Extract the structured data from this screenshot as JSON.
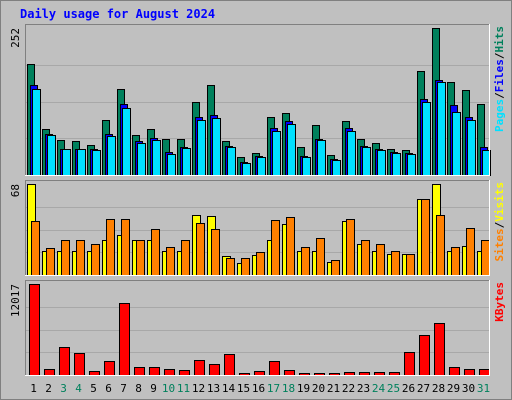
{
  "chart_data": {
    "type": "bar",
    "title": "Daily usage for August 2024",
    "days": [
      "1",
      "2",
      "3",
      "4",
      "5",
      "6",
      "7",
      "8",
      "9",
      "10",
      "11",
      "12",
      "13",
      "14",
      "15",
      "16",
      "17",
      "18",
      "19",
      "20",
      "21",
      "22",
      "23",
      "24",
      "25",
      "26",
      "27",
      "28",
      "29",
      "30",
      "31"
    ],
    "weekend_days": [
      3,
      4,
      10,
      11,
      17,
      18,
      24,
      25,
      31
    ],
    "colors": {
      "hits": "#00805c",
      "files": "#0000ff",
      "pages": "#00e0ff",
      "visits": "#ffff00",
      "sites": "#ff8000",
      "kbytes": "#ff0000",
      "weekday_label": "#000000",
      "weekend_label": "#00805c",
      "title": "#0000ff",
      "background": "#c0c0c0"
    },
    "panels": [
      {
        "id": "hits-files-pages",
        "max_label": "252",
        "max": 252,
        "legend": [
          {
            "text": "Pages",
            "color": "#00e0ff"
          },
          {
            "text": "/",
            "color": "#000000"
          },
          {
            "text": "Files",
            "color": "#0000ff"
          },
          {
            "text": "/",
            "color": "#000000"
          },
          {
            "text": "Hits",
            "color": "#00805c"
          }
        ],
        "series": [
          {
            "name": "Hits",
            "color": "#00805c",
            "values": [
              190,
              78,
              60,
              58,
              52,
              95,
              148,
              68,
              78,
              62,
              62,
              125,
              155,
              58,
              30,
              38,
              100,
              106,
              48,
              85,
              35,
              92,
              62,
              55,
              45,
              42,
              178,
              252,
              160,
              145,
              122
            ]
          },
          {
            "name": "Files",
            "color": "#0000ff",
            "values": [
              155,
              70,
              45,
              45,
              45,
              70,
              122,
              58,
              63,
              40,
              48,
              100,
              103,
              50,
              22,
              32,
              80,
              92,
              32,
              62,
              28,
              80,
              50,
              45,
              40,
              38,
              130,
              163,
              120,
              100,
              48
            ]
          },
          {
            "name": "Pages",
            "color": "#00e0ff",
            "values": [
              148,
              68,
              44,
              44,
              43,
              66,
              115,
              55,
              60,
              36,
              46,
              95,
              98,
              48,
              20,
              30,
              76,
              87,
              30,
              60,
              26,
              76,
              48,
              43,
              38,
              36,
              125,
              160,
              108,
              95,
              42
            ]
          }
        ]
      },
      {
        "id": "visits-sites",
        "max_label": "68",
        "max": 68,
        "legend": [
          {
            "text": "Sites",
            "color": "#ff8000"
          },
          {
            "text": "/",
            "color": "#000000"
          },
          {
            "text": "Visits",
            "color": "#ffff00"
          }
        ],
        "series": [
          {
            "name": "Visits",
            "color": "#ffff00",
            "values": [
              68,
              18,
              18,
              18,
              18,
              26,
              30,
              26,
              26,
              18,
              18,
              45,
              44,
              14,
              9,
              15,
              26,
              38,
              18,
              18,
              10,
              40,
              23,
              18,
              16,
              16,
              57,
              68,
              18,
              22,
              18
            ]
          },
          {
            "name": "Sites",
            "color": "#ff8000",
            "values": [
              40,
              20,
              26,
              26,
              23,
              42,
              42,
              26,
              34,
              21,
              26,
              39,
              34,
              13,
              13,
              17,
              41,
              43,
              21,
              28,
              11,
              42,
              26,
              23,
              18,
              16,
              57,
              45,
              21,
              35,
              26
            ]
          }
        ]
      },
      {
        "id": "kbytes",
        "max_label": "12017",
        "max": 12017,
        "legend": [
          {
            "text": "KBytes",
            "color": "#ff0000"
          }
        ],
        "series": [
          {
            "name": "KBytes",
            "color": "#ff0000",
            "values": [
              12017,
              840,
              3680,
              2850,
              560,
              1820,
              9480,
              1120,
              1050,
              770,
              700,
              1960,
              1400,
              2730,
              210,
              490,
              1820,
              700,
              210,
              280,
              210,
              350,
              350,
              420,
              350,
              3010,
              5280,
              6830,
              1050,
              840,
              770
            ]
          }
        ]
      }
    ]
  }
}
